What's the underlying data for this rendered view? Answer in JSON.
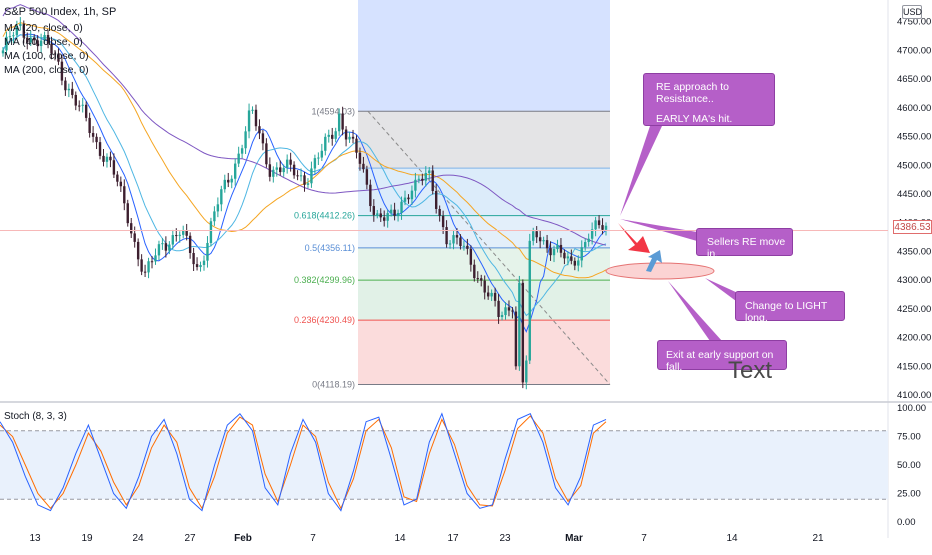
{
  "legend": {
    "title": "S&P 500 Index, 1h, SP",
    "ma_lines": [
      "MA (20, close, 0)",
      "MA (40, close, 0)",
      "MA (100, close, 0)",
      "MA (200, close, 0)"
    ]
  },
  "currency": "USD",
  "last_price": "4386.53",
  "stoch_label": "Stoch (8, 3, 3)",
  "note_text": "Text",
  "callouts": [
    {
      "id": "resistance",
      "lines": [
        "RE approach to Resistance..",
        "",
        "EARLY MA's hit."
      ]
    },
    {
      "id": "sellers",
      "lines": [
        "Sellers RE move in."
      ]
    },
    {
      "id": "light-long",
      "lines": [
        "Change to LIGHT long."
      ]
    },
    {
      "id": "exit",
      "lines": [
        "Exit at early support on fall."
      ]
    }
  ],
  "fib_levels": [
    {
      "ratio": "1",
      "price": 4594.03,
      "label": "1(4594.03)"
    },
    {
      "ratio": "0.618",
      "price": 4412.26,
      "label": "0.618(4412.26)"
    },
    {
      "ratio": "0.5",
      "price": 4356.11,
      "label": "0.5(4356.11)"
    },
    {
      "ratio": "0.382",
      "price": 4299.96,
      "label": "0.382(4299.96)"
    },
    {
      "ratio": "0.236",
      "price": 4230.49,
      "label": "0.236(4230.49)"
    },
    {
      "ratio": "0",
      "price": 4118.19,
      "label": "0(4118.19)"
    }
  ],
  "colors": {
    "up": "#26a69a",
    "down": "#3d1f2f",
    "ma20": "#2962ff",
    "ma40": "#4fb7e3",
    "ma100": "#f5a623",
    "ma200": "#7e57c2",
    "stoch_k": "#2962ff",
    "stoch_d": "#ff6d00",
    "callout": "#b55fc8",
    "arrow_down": "#f23645",
    "arrow_up": "#5b9bd5"
  },
  "chart_data": [
    {
      "type": "candlestick",
      "title": "S&P 500 Index, 1h, SP",
      "ylim": [
        4090,
        4800
      ],
      "y_ticks": [
        4100,
        4150,
        4200,
        4250,
        4300,
        4350,
        4400,
        4450,
        4500,
        4550,
        4600,
        4650,
        4700,
        4750
      ],
      "x_tick_labels": [
        "13",
        "19",
        "24",
        "27",
        "Feb",
        "7",
        "14",
        "17",
        "23",
        "Mar",
        "7",
        "14",
        "21"
      ],
      "close_path": [
        {
          "date": "Jan 11",
          "close": 4700
        },
        {
          "date": "Jan 12",
          "close": 4740
        },
        {
          "date": "Jan 13",
          "close": 4715
        },
        {
          "date": "Jan 14",
          "close": 4690
        },
        {
          "date": "Jan 18",
          "close": 4610
        },
        {
          "date": "Jan 19",
          "close": 4560
        },
        {
          "date": "Jan 20",
          "close": 4500
        },
        {
          "date": "Jan 21",
          "close": 4420
        },
        {
          "date": "Jan 24",
          "close": 4300
        },
        {
          "date": "Jan 25",
          "close": 4370
        },
        {
          "date": "Jan 26",
          "close": 4380
        },
        {
          "date": "Jan 27",
          "close": 4320
        },
        {
          "date": "Jan 28",
          "close": 4420
        },
        {
          "date": "Jan 31",
          "close": 4500
        },
        {
          "date": "Feb 2",
          "close": 4590
        },
        {
          "date": "Feb 3",
          "close": 4500
        },
        {
          "date": "Feb 4",
          "close": 4490
        },
        {
          "date": "Feb 7",
          "close": 4480
        },
        {
          "date": "Feb 8",
          "close": 4520
        },
        {
          "date": "Feb 9",
          "close": 4585
        },
        {
          "date": "Feb 10",
          "close": 4510
        },
        {
          "date": "Feb 11",
          "close": 4420
        },
        {
          "date": "Feb 14",
          "close": 4400
        },
        {
          "date": "Feb 15",
          "close": 4470
        },
        {
          "date": "Feb 16",
          "close": 4475
        },
        {
          "date": "Feb 17",
          "close": 4380
        },
        {
          "date": "Feb 18",
          "close": 4350
        },
        {
          "date": "Feb 22",
          "close": 4300
        },
        {
          "date": "Feb 23",
          "close": 4230
        },
        {
          "date": "Feb 24",
          "close": 4280
        },
        {
          "date": "Feb 25",
          "close": 4380
        },
        {
          "date": "Feb 28",
          "close": 4360
        },
        {
          "date": "Mar 1",
          "close": 4320
        },
        {
          "date": "Mar 2",
          "close": 4385
        },
        {
          "date": "Mar 3",
          "close": 4386.53
        }
      ],
      "extremes": {
        "low": 4118.19,
        "high": 4594.03
      }
    },
    {
      "type": "line",
      "title": "Stoch (8, 3, 3)",
      "ylim": [
        0,
        100
      ],
      "y_ticks": [
        0,
        25,
        50,
        75,
        100
      ],
      "bands": [
        20,
        80
      ],
      "k_values": [
        88,
        70,
        40,
        15,
        10,
        30,
        60,
        85,
        55,
        25,
        12,
        40,
        75,
        90,
        60,
        20,
        10,
        50,
        85,
        95,
        80,
        30,
        15,
        60,
        90,
        70,
        25,
        10,
        45,
        88,
        92,
        55,
        15,
        20,
        70,
        95,
        60,
        25,
        12,
        15,
        55,
        90,
        95,
        70,
        30,
        15,
        40,
        85,
        90
      ],
      "d_values": [
        85,
        75,
        50,
        25,
        12,
        25,
        50,
        78,
        62,
        35,
        15,
        32,
        65,
        85,
        70,
        30,
        12,
        40,
        78,
        92,
        85,
        42,
        18,
        50,
        85,
        75,
        35,
        12,
        38,
        80,
        90,
        65,
        22,
        18,
        60,
        90,
        68,
        32,
        15,
        14,
        45,
        82,
        93,
        78,
        38,
        18,
        32,
        78,
        88
      ]
    }
  ]
}
